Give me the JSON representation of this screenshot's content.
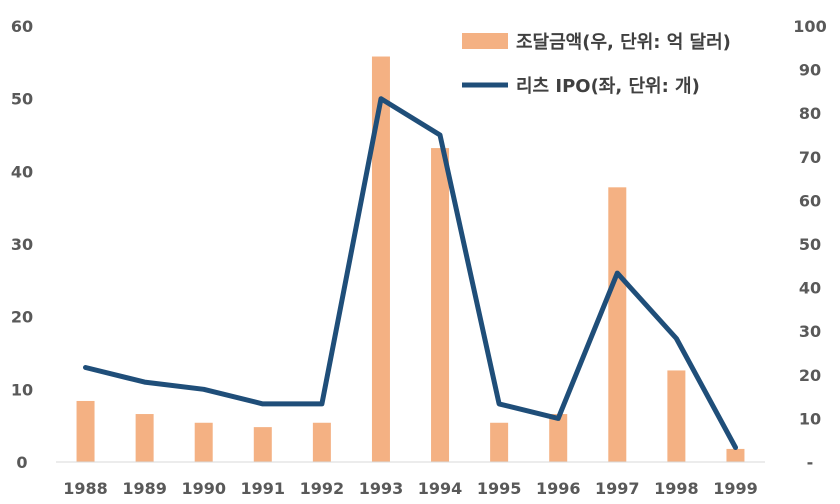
{
  "chart_data": {
    "type": "bar+line",
    "categories": [
      "1988",
      "1989",
      "1990",
      "1991",
      "1992",
      "1993",
      "1994",
      "1995",
      "1996",
      "1997",
      "1998",
      "1999"
    ],
    "series": [
      {
        "name": "조달금액(우, 단위: 억 달러)",
        "kind": "bar",
        "axis": "right",
        "color": "#F4B183",
        "values": [
          14,
          11,
          9,
          8,
          9,
          93,
          72,
          9,
          11,
          63,
          21,
          3
        ]
      },
      {
        "name": "리츠 IPO(좌, 단위: 개)",
        "kind": "line",
        "axis": "left",
        "color": "#1F4E79",
        "values": [
          13,
          11,
          10,
          8,
          8,
          50,
          45,
          8,
          6,
          26,
          17,
          2
        ]
      }
    ],
    "y_left": {
      "min": 0,
      "max": 60,
      "step": 10,
      "ticks": [
        "0",
        "10",
        "20",
        "30",
        "40",
        "50",
        "60"
      ]
    },
    "y_right": {
      "min": 0,
      "max": 100,
      "step": 10,
      "ticks": [
        "-",
        "10",
        "20",
        "30",
        "40",
        "50",
        "60",
        "70",
        "80",
        "90",
        "100"
      ]
    },
    "legend_position": "top-right",
    "grid": false
  }
}
